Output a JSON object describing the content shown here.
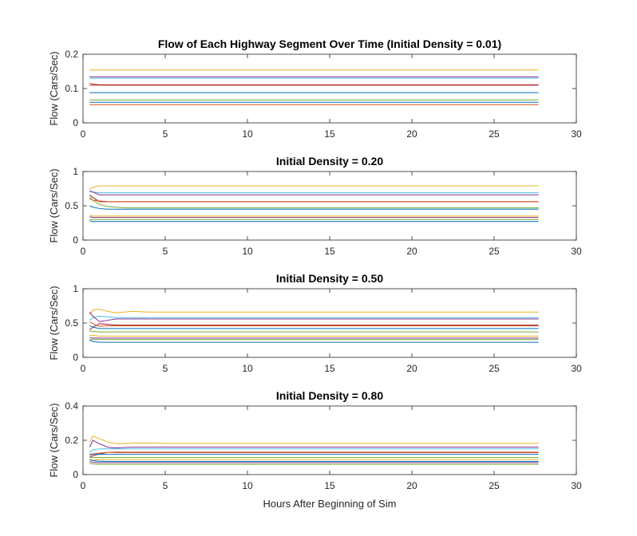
{
  "chart_data": [
    {
      "type": "line",
      "title": "Flow of Each Highway Segment Over Time (Initial Density = 0.01)",
      "xlabel": "",
      "ylabel": "Flow (Cars/Sec)",
      "xlim": [
        0,
        30
      ],
      "ylim": [
        0,
        0.2
      ],
      "xticks": [
        0,
        5,
        10,
        15,
        20,
        25,
        30
      ],
      "yticks": [
        0,
        0.1,
        0.2
      ],
      "grid": false,
      "legend": "none",
      "x": [
        0.4,
        0.6,
        1,
        1.5,
        2,
        2.5,
        3,
        4,
        5,
        7,
        10,
        15,
        20,
        25,
        27.7
      ],
      "series": [
        {
          "color": "#EDB120",
          "values": [
            0.154,
            0.154,
            0.154,
            0.154,
            0.154,
            0.154,
            0.154,
            0.154,
            0.154,
            0.154,
            0.154,
            0.154,
            0.154,
            0.154,
            0.154
          ]
        },
        {
          "color": "#7E2F8E",
          "values": [
            0.134,
            0.134,
            0.134,
            0.134,
            0.134,
            0.134,
            0.134,
            0.134,
            0.134,
            0.134,
            0.134,
            0.134,
            0.134,
            0.134,
            0.134
          ]
        },
        {
          "color": "#4DBEEE",
          "values": [
            0.13,
            0.13,
            0.13,
            0.13,
            0.13,
            0.13,
            0.13,
            0.13,
            0.13,
            0.13,
            0.13,
            0.13,
            0.13,
            0.13,
            0.13
          ]
        },
        {
          "color": "#D95319",
          "values": [
            0.116,
            0.113,
            0.111,
            0.111,
            0.111,
            0.111,
            0.111,
            0.111,
            0.111,
            0.111,
            0.111,
            0.111,
            0.111,
            0.111,
            0.111
          ]
        },
        {
          "color": "#A2142F",
          "values": [
            0.11,
            0.11,
            0.11,
            0.11,
            0.11,
            0.11,
            0.11,
            0.11,
            0.11,
            0.11,
            0.11,
            0.11,
            0.11,
            0.11,
            0.11
          ]
        },
        {
          "color": "#0072BD",
          "values": [
            0.088,
            0.088,
            0.088,
            0.088,
            0.088,
            0.088,
            0.088,
            0.088,
            0.088,
            0.088,
            0.088,
            0.088,
            0.088,
            0.088,
            0.088
          ]
        },
        {
          "color": "#77AC30",
          "values": [
            0.067,
            0.067,
            0.067,
            0.067,
            0.067,
            0.067,
            0.067,
            0.067,
            0.067,
            0.067,
            0.067,
            0.067,
            0.067,
            0.067,
            0.067
          ]
        },
        {
          "color": "#0072BD",
          "values": [
            0.06,
            0.06,
            0.06,
            0.06,
            0.06,
            0.06,
            0.06,
            0.06,
            0.06,
            0.06,
            0.06,
            0.06,
            0.06,
            0.06,
            0.06
          ]
        },
        {
          "color": "#D95319",
          "values": [
            0.053,
            0.053,
            0.053,
            0.053,
            0.053,
            0.053,
            0.053,
            0.053,
            0.053,
            0.053,
            0.053,
            0.053,
            0.053,
            0.053,
            0.053
          ]
        }
      ]
    },
    {
      "type": "line",
      "title": "Initial Density = 0.20",
      "xlabel": "",
      "ylabel": "Flow (Cars/Sec)",
      "xlim": [
        0,
        30
      ],
      "ylim": [
        0,
        1
      ],
      "xticks": [
        0,
        5,
        10,
        15,
        20,
        25,
        30
      ],
      "yticks": [
        0,
        0.5,
        1
      ],
      "grid": false,
      "legend": "none",
      "x": [
        0.4,
        0.6,
        1,
        1.5,
        2,
        2.5,
        3,
        4,
        5,
        7,
        10,
        15,
        20,
        25,
        27.7
      ],
      "series": [
        {
          "color": "#EDB120",
          "values": [
            0.74,
            0.77,
            0.79,
            0.79,
            0.79,
            0.79,
            0.79,
            0.79,
            0.79,
            0.79,
            0.79,
            0.79,
            0.79,
            0.79,
            0.79
          ]
        },
        {
          "color": "#4DBEEE",
          "values": [
            0.7,
            0.7,
            0.69,
            0.69,
            0.69,
            0.69,
            0.69,
            0.69,
            0.69,
            0.69,
            0.69,
            0.69,
            0.69,
            0.69,
            0.69
          ]
        },
        {
          "color": "#7E2F8E",
          "values": [
            0.72,
            0.7,
            0.66,
            0.66,
            0.66,
            0.66,
            0.66,
            0.66,
            0.66,
            0.66,
            0.66,
            0.66,
            0.66,
            0.66,
            0.66
          ]
        },
        {
          "color": "#A2142F",
          "values": [
            0.66,
            0.62,
            0.56,
            0.56,
            0.56,
            0.56,
            0.56,
            0.56,
            0.56,
            0.56,
            0.56,
            0.56,
            0.56,
            0.56,
            0.56
          ]
        },
        {
          "color": "#D95319",
          "values": [
            0.6,
            0.58,
            0.57,
            0.56,
            0.56,
            0.56,
            0.56,
            0.56,
            0.56,
            0.56,
            0.56,
            0.56,
            0.56,
            0.56,
            0.56
          ]
        },
        {
          "color": "#77AC30",
          "values": [
            0.63,
            0.58,
            0.52,
            0.49,
            0.48,
            0.47,
            0.47,
            0.47,
            0.47,
            0.47,
            0.47,
            0.47,
            0.47,
            0.47,
            0.47
          ]
        },
        {
          "color": "#0072BD",
          "values": [
            0.5,
            0.48,
            0.46,
            0.45,
            0.45,
            0.45,
            0.45,
            0.45,
            0.45,
            0.45,
            0.45,
            0.45,
            0.45,
            0.45,
            0.45
          ]
        },
        {
          "color": "#EDB120",
          "values": [
            0.36,
            0.35,
            0.35,
            0.35,
            0.35,
            0.35,
            0.35,
            0.35,
            0.35,
            0.35,
            0.35,
            0.35,
            0.35,
            0.35,
            0.35
          ]
        },
        {
          "color": "#7E2F8E",
          "values": [
            0.34,
            0.33,
            0.33,
            0.33,
            0.33,
            0.33,
            0.33,
            0.33,
            0.33,
            0.33,
            0.33,
            0.33,
            0.33,
            0.33,
            0.33
          ]
        },
        {
          "color": "#77AC30",
          "values": [
            0.3,
            0.3,
            0.3,
            0.3,
            0.3,
            0.3,
            0.3,
            0.3,
            0.3,
            0.3,
            0.3,
            0.3,
            0.3,
            0.3,
            0.3
          ]
        },
        {
          "color": "#0072BD",
          "values": [
            0.28,
            0.27,
            0.27,
            0.27,
            0.27,
            0.27,
            0.27,
            0.27,
            0.27,
            0.27,
            0.27,
            0.27,
            0.27,
            0.27,
            0.27
          ]
        }
      ]
    },
    {
      "type": "line",
      "title": "Initial Density = 0.50",
      "xlabel": "",
      "ylabel": "Flow (Cars/Sec)",
      "xlim": [
        0,
        30
      ],
      "ylim": [
        0,
        1
      ],
      "xticks": [
        0,
        5,
        10,
        15,
        20,
        25,
        30
      ],
      "yticks": [
        0,
        0.5,
        1
      ],
      "grid": false,
      "legend": "none",
      "x": [
        0.4,
        0.6,
        1,
        1.5,
        2,
        2.5,
        3,
        4,
        5,
        7,
        10,
        15,
        20,
        25,
        27.7
      ],
      "series": [
        {
          "color": "#EDB120",
          "values": [
            0.62,
            0.69,
            0.7,
            0.67,
            0.65,
            0.66,
            0.67,
            0.66,
            0.66,
            0.66,
            0.66,
            0.66,
            0.66,
            0.66,
            0.66
          ]
        },
        {
          "color": "#4DBEEE",
          "values": [
            0.54,
            0.58,
            0.6,
            0.59,
            0.58,
            0.58,
            0.58,
            0.58,
            0.58,
            0.58,
            0.58,
            0.58,
            0.58,
            0.58,
            0.58
          ]
        },
        {
          "color": "#7E2F8E",
          "values": [
            0.66,
            0.6,
            0.52,
            0.54,
            0.56,
            0.56,
            0.56,
            0.56,
            0.56,
            0.56,
            0.56,
            0.56,
            0.56,
            0.56,
            0.56
          ]
        },
        {
          "color": "#A2142F",
          "values": [
            0.4,
            0.44,
            0.49,
            0.48,
            0.47,
            0.47,
            0.47,
            0.47,
            0.47,
            0.47,
            0.47,
            0.47,
            0.47,
            0.47,
            0.47
          ]
        },
        {
          "color": "#D95319",
          "values": [
            0.52,
            0.49,
            0.45,
            0.46,
            0.46,
            0.46,
            0.46,
            0.46,
            0.46,
            0.46,
            0.46,
            0.46,
            0.46,
            0.46,
            0.46
          ]
        },
        {
          "color": "#0072BD",
          "values": [
            0.46,
            0.44,
            0.42,
            0.42,
            0.42,
            0.42,
            0.42,
            0.42,
            0.42,
            0.42,
            0.42,
            0.42,
            0.42,
            0.42,
            0.42
          ]
        },
        {
          "color": "#77AC30",
          "values": [
            0.38,
            0.38,
            0.37,
            0.37,
            0.37,
            0.37,
            0.37,
            0.37,
            0.37,
            0.37,
            0.37,
            0.37,
            0.37,
            0.37,
            0.37
          ]
        },
        {
          "color": "#EDB120",
          "values": [
            0.32,
            0.32,
            0.31,
            0.31,
            0.31,
            0.31,
            0.31,
            0.31,
            0.31,
            0.31,
            0.31,
            0.31,
            0.31,
            0.31,
            0.31
          ]
        },
        {
          "color": "#7E2F8E",
          "values": [
            0.29,
            0.28,
            0.28,
            0.28,
            0.28,
            0.28,
            0.28,
            0.28,
            0.28,
            0.28,
            0.28,
            0.28,
            0.28,
            0.28,
            0.28
          ]
        },
        {
          "color": "#77AC30",
          "values": [
            0.26,
            0.26,
            0.26,
            0.26,
            0.26,
            0.26,
            0.26,
            0.26,
            0.26,
            0.26,
            0.26,
            0.26,
            0.26,
            0.26,
            0.26
          ]
        },
        {
          "color": "#0072BD",
          "values": [
            0.25,
            0.23,
            0.22,
            0.22,
            0.22,
            0.22,
            0.22,
            0.22,
            0.22,
            0.22,
            0.22,
            0.22,
            0.22,
            0.22,
            0.22
          ]
        }
      ]
    },
    {
      "type": "line",
      "title": "Initial Density = 0.80",
      "xlabel": "Hours After Beginning of Sim",
      "ylabel": "Flow (Cars/Sec)",
      "xlim": [
        0,
        30
      ],
      "ylim": [
        0,
        0.4
      ],
      "xticks": [
        0,
        5,
        10,
        15,
        20,
        25,
        30
      ],
      "yticks": [
        0,
        0.2,
        0.4
      ],
      "grid": false,
      "legend": "none",
      "x": [
        0.4,
        0.6,
        1,
        1.5,
        2,
        2.5,
        3,
        4,
        5,
        7,
        10,
        15,
        20,
        25,
        27.7
      ],
      "series": [
        {
          "color": "#EDB120",
          "values": [
            0.19,
            0.225,
            0.21,
            0.19,
            0.18,
            0.18,
            0.183,
            0.184,
            0.182,
            0.182,
            0.182,
            0.182,
            0.182,
            0.182,
            0.182
          ]
        },
        {
          "color": "#7E2F8E",
          "values": [
            0.16,
            0.2,
            0.18,
            0.16,
            0.155,
            0.158,
            0.16,
            0.16,
            0.16,
            0.16,
            0.16,
            0.16,
            0.16,
            0.16,
            0.16
          ]
        },
        {
          "color": "#4DBEEE",
          "values": [
            0.13,
            0.145,
            0.15,
            0.15,
            0.15,
            0.15,
            0.15,
            0.15,
            0.15,
            0.15,
            0.15,
            0.15,
            0.15,
            0.15,
            0.15
          ]
        },
        {
          "color": "#A2142F",
          "values": [
            0.1,
            0.11,
            0.12,
            0.13,
            0.13,
            0.13,
            0.13,
            0.13,
            0.13,
            0.13,
            0.13,
            0.13,
            0.13,
            0.13,
            0.13
          ]
        },
        {
          "color": "#D95319",
          "values": [
            0.11,
            0.12,
            0.125,
            0.13,
            0.128,
            0.128,
            0.128,
            0.128,
            0.128,
            0.128,
            0.128,
            0.128,
            0.128,
            0.128,
            0.128
          ]
        },
        {
          "color": "#0072BD",
          "values": [
            0.12,
            0.12,
            0.118,
            0.118,
            0.118,
            0.118,
            0.118,
            0.118,
            0.118,
            0.118,
            0.118,
            0.118,
            0.118,
            0.118,
            0.118
          ]
        },
        {
          "color": "#77AC30",
          "values": [
            0.1,
            0.1,
            0.1,
            0.1,
            0.1,
            0.1,
            0.1,
            0.1,
            0.1,
            0.1,
            0.1,
            0.1,
            0.1,
            0.1,
            0.1
          ]
        },
        {
          "color": "#EDB120",
          "values": [
            0.08,
            0.085,
            0.088,
            0.088,
            0.088,
            0.088,
            0.088,
            0.088,
            0.088,
            0.088,
            0.088,
            0.088,
            0.088,
            0.088,
            0.088
          ]
        },
        {
          "color": "#0072BD",
          "values": [
            0.09,
            0.082,
            0.078,
            0.077,
            0.077,
            0.077,
            0.077,
            0.077,
            0.077,
            0.077,
            0.077,
            0.077,
            0.077,
            0.077,
            0.077
          ]
        },
        {
          "color": "#7E2F8E",
          "values": [
            0.075,
            0.072,
            0.07,
            0.07,
            0.07,
            0.07,
            0.07,
            0.07,
            0.07,
            0.07,
            0.07,
            0.07,
            0.07,
            0.07,
            0.07
          ]
        },
        {
          "color": "#77AC30",
          "values": [
            0.065,
            0.062,
            0.06,
            0.06,
            0.06,
            0.06,
            0.06,
            0.06,
            0.06,
            0.06,
            0.06,
            0.06,
            0.06,
            0.06,
            0.06
          ]
        }
      ]
    }
  ]
}
